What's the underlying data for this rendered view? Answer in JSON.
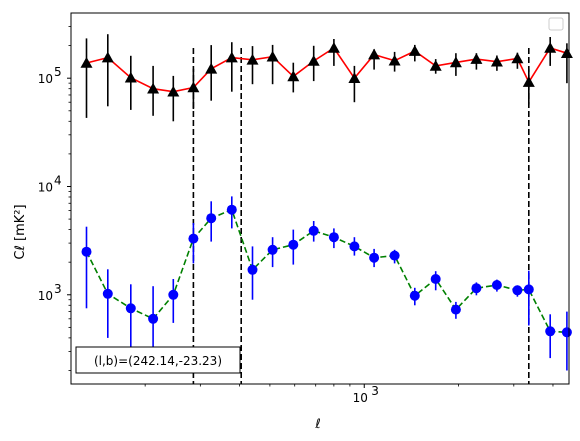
{
  "chart_data": {
    "type": "scatter",
    "xlabel": "ℓ",
    "ylabel": "Cℓ  [mK²]",
    "x_scale": "log",
    "y_scale": "log",
    "xlim": [
      116,
      4500
    ],
    "ylim": [
      150,
      400000
    ],
    "x_ticks": [
      {
        "value": 1000,
        "base": "10",
        "exp": "3"
      }
    ],
    "y_ticks": [
      {
        "value": 1000,
        "base": "10",
        "exp": "3"
      },
      {
        "value": 10000,
        "base": "10",
        "exp": "4"
      },
      {
        "value": 100000,
        "base": "10",
        "exp": "5"
      }
    ],
    "legend": "top-right, empty",
    "annotation": "(l,b)=(242.14,-23.23)",
    "vertical_lines_x": [
      285,
      405,
      3350
    ],
    "series": [
      {
        "marker": "triangle",
        "color": "#000000",
        "line_color": "#ff0000",
        "line_style": "solid",
        "x": [
          130,
          152,
          180,
          212,
          246,
          285,
          325,
          378,
          440,
          510,
          594,
          690,
          800,
          930,
          1075,
          1250,
          1450,
          1690,
          1960,
          2280,
          2650,
          3080,
          3350,
          3920,
          4430
        ],
        "y": [
          138000,
          155000,
          101000,
          80000,
          75000,
          82000,
          122000,
          155000,
          148000,
          158000,
          104000,
          144000,
          190000,
          100000,
          165000,
          145000,
          178000,
          130000,
          140000,
          150000,
          142000,
          152000,
          92000,
          190000,
          170000
        ],
        "err_low": [
          95000,
          100000,
          50000,
          35000,
          35000,
          30000,
          60000,
          80000,
          60000,
          70000,
          30000,
          50000,
          60000,
          40000,
          45000,
          30000,
          35000,
          20000,
          35000,
          30000,
          25000,
          30000,
          35000,
          60000,
          80000
        ],
        "err_high": [
          95000,
          100000,
          60000,
          50000,
          30000,
          40000,
          80000,
          60000,
          50000,
          45000,
          35000,
          55000,
          40000,
          30000,
          20000,
          30000,
          25000,
          20000,
          30000,
          20000,
          20000,
          20000,
          30000,
          50000,
          40000
        ]
      },
      {
        "marker": "circle",
        "color": "#0000ff",
        "line_color": "#008000",
        "line_style": "dashed",
        "x": [
          130,
          152,
          180,
          212,
          246,
          285,
          325,
          378,
          440,
          510,
          594,
          690,
          800,
          930,
          1075,
          1250,
          1450,
          1690,
          1960,
          2280,
          2650,
          3080,
          3350,
          3920,
          4430
        ],
        "y": [
          2500,
          1020,
          750,
          600,
          1000,
          3300,
          5100,
          6100,
          1700,
          2600,
          2900,
          3900,
          3400,
          2800,
          2200,
          2300,
          980,
          1400,
          730,
          1150,
          1230,
          1100,
          1120,
          460,
          450
        ],
        "err_low": [
          1750,
          620,
          450,
          300,
          450,
          1350,
          2000,
          2000,
          800,
          800,
          1000,
          800,
          700,
          500,
          400,
          350,
          180,
          300,
          130,
          160,
          160,
          140,
          600,
          200,
          250
        ],
        "err_high": [
          1750,
          700,
          500,
          600,
          400,
          1300,
          2200,
          2000,
          1100,
          800,
          1100,
          900,
          700,
          600,
          450,
          300,
          180,
          250,
          130,
          150,
          150,
          120,
          550,
          200,
          250
        ]
      }
    ]
  }
}
